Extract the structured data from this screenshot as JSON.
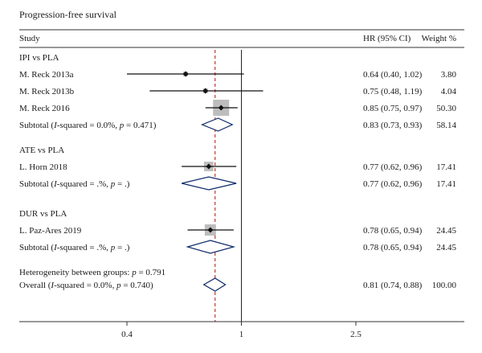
{
  "chart_data": {
    "type": "forest",
    "title": "Progression-free survival",
    "columns": {
      "study": "Study",
      "effect": "HR (95% CI)",
      "weight": "Weight %"
    },
    "x_scale": "log",
    "x_ticks": [
      0.4,
      1,
      2.5
    ],
    "x_tick_labels": [
      "0.4",
      "1",
      "2.5"
    ],
    "null_line": 1,
    "overall_line": 0.81,
    "heterogeneity_between_groups": "Heterogeneity between groups: p = 0.791",
    "groups": [
      {
        "name": "IPI vs PLA",
        "studies": [
          {
            "label": "M. Reck 2013a",
            "hr": 0.64,
            "lo": 0.4,
            "hi": 1.02,
            "weight": 3.8,
            "hr_text": "0.64 (0.40, 1.02)",
            "weight_text": "3.80"
          },
          {
            "label": "M. Reck 2013b",
            "hr": 0.75,
            "lo": 0.48,
            "hi": 1.19,
            "weight": 4.04,
            "hr_text": "0.75 (0.48, 1.19)",
            "weight_text": "4.04"
          },
          {
            "label": "M. Reck 2016",
            "hr": 0.85,
            "lo": 0.75,
            "hi": 0.97,
            "weight": 50.3,
            "hr_text": "0.85 (0.75, 0.97)",
            "weight_text": "50.30"
          }
        ],
        "subtotal": {
          "prefix": "Subtotal (",
          "stat": "I",
          "suffix": "-squared = 0.0%, ",
          "p_label": "p",
          "p_value": " = 0.471)",
          "hr": 0.83,
          "lo": 0.73,
          "hi": 0.93,
          "hr_text": "0.83 (0.73, 0.93)",
          "weight_text": "58.14"
        }
      },
      {
        "name": "ATE vs PLA",
        "studies": [
          {
            "label": "L. Horn 2018",
            "hr": 0.77,
            "lo": 0.62,
            "hi": 0.96,
            "weight": 17.41,
            "hr_text": "0.77 (0.62, 0.96)",
            "weight_text": "17.41"
          }
        ],
        "subtotal": {
          "prefix": "Subtotal (",
          "stat": "I",
          "suffix": "-squared = .%, ",
          "p_label": "p",
          "p_value": " = .)",
          "hr": 0.77,
          "lo": 0.62,
          "hi": 0.96,
          "hr_text": "0.77 (0.62, 0.96)",
          "weight_text": "17.41"
        }
      },
      {
        "name": "DUR vs PLA",
        "studies": [
          {
            "label": "L. Paz-Ares 2019",
            "hr": 0.78,
            "lo": 0.65,
            "hi": 0.94,
            "weight": 24.45,
            "hr_text": "0.78 (0.65, 0.94)",
            "weight_text": "24.45"
          }
        ],
        "subtotal": {
          "prefix": "Subtotal (",
          "stat": "I",
          "suffix": "-squared = .%, ",
          "p_label": "p",
          "p_value": " = .)",
          "hr": 0.78,
          "lo": 0.65,
          "hi": 0.94,
          "hr_text": "0.78 (0.65, 0.94)",
          "weight_text": "24.45"
        }
      }
    ],
    "overall": {
      "prefix": "Overall (",
      "stat": "I",
      "suffix": "-squared = 0.0%, ",
      "p_label": "p",
      "p_value": " = 0.740)",
      "hr": 0.81,
      "lo": 0.74,
      "hi": 0.88,
      "hr_text": "0.81 (0.74, 0.88)",
      "weight_text": "100.00"
    },
    "colors": {
      "box": "#bdbdbd",
      "diamond": "#0d2a6b",
      "overall_line": "#c0392b",
      "text": "#1a1a1a",
      "rule": "#333333"
    }
  }
}
